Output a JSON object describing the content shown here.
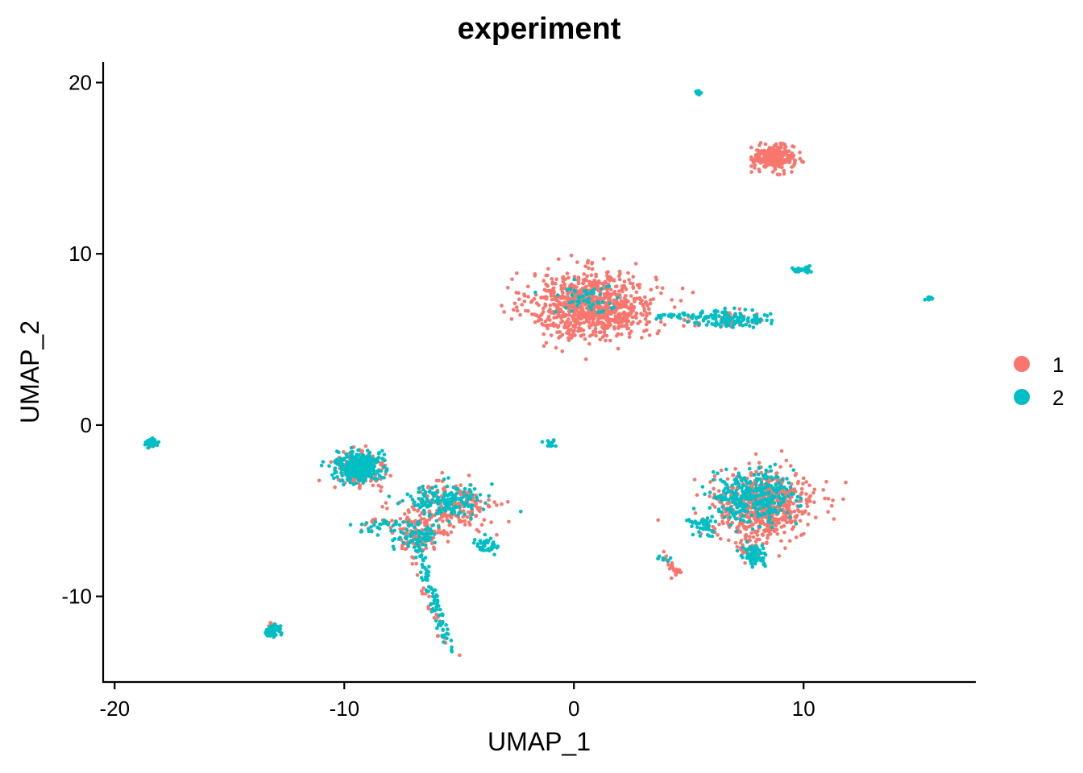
{
  "chart_data": {
    "type": "scatter",
    "title": "experiment",
    "xlabel": "UMAP_1",
    "ylabel": "UMAP_2",
    "xlim": [
      -20.5,
      17.5
    ],
    "ylim": [
      -15.0,
      21.2
    ],
    "xticks": [
      {
        "value": -20,
        "label": "-20"
      },
      {
        "value": -10,
        "label": "-10"
      },
      {
        "value": 0,
        "label": "0"
      },
      {
        "value": 10,
        "label": "10"
      }
    ],
    "yticks": [
      {
        "value": -10,
        "label": "-10"
      },
      {
        "value": 0,
        "label": "0"
      },
      {
        "value": 10,
        "label": "10"
      },
      {
        "value": 20,
        "label": "20"
      }
    ],
    "grid": false,
    "legend": {
      "placement": "right",
      "entries": [
        {
          "label": "1",
          "color": "#F8766D"
        },
        {
          "label": "2",
          "color": "#00BFC4"
        }
      ]
    },
    "series": [
      {
        "name": "1",
        "color": "#F8766D",
        "clusters": [
          {
            "cx": 0.8,
            "cy": 7.0,
            "sx": 1.7,
            "sy": 1.2,
            "n": 900
          },
          {
            "cx": 8.7,
            "cy": 15.6,
            "sx": 0.55,
            "sy": 0.45,
            "n": 260
          },
          {
            "cx": 8.3,
            "cy": -4.7,
            "sx": 1.4,
            "sy": 1.2,
            "n": 600
          },
          {
            "cx": -9.3,
            "cy": -2.6,
            "sx": 0.7,
            "sy": 0.8,
            "n": 160
          },
          {
            "cx": -5.6,
            "cy": -4.8,
            "sx": 1.3,
            "sy": 0.9,
            "n": 190
          },
          {
            "cx": -6.8,
            "cy": -6.5,
            "sx": 0.7,
            "sy": 0.6,
            "n": 80
          },
          {
            "cx": 6.8,
            "cy": 6.1,
            "sx": 1.0,
            "sy": 0.3,
            "n": 45
          },
          {
            "cx": -18.4,
            "cy": -1.0,
            "sx": 0.15,
            "sy": 0.15,
            "n": 12
          },
          {
            "cx": -13.1,
            "cy": -11.8,
            "sx": 0.15,
            "sy": 0.15,
            "n": 12
          },
          {
            "cx": 4.4,
            "cy": -8.5,
            "sx": 0.2,
            "sy": 0.3,
            "n": 15
          },
          {
            "cx": 7.7,
            "cy": -7.0,
            "sx": 0.35,
            "sy": 0.6,
            "n": 30
          }
        ],
        "paths": [
          {
            "x1": -7.6,
            "y1": -6.3,
            "x2": -5.3,
            "y2": -13.4,
            "n": 30,
            "jitter": 0.12
          },
          {
            "x1": -9.6,
            "y1": -6.0,
            "x2": -3.0,
            "y2": -4.7,
            "n": 40,
            "jitter": 0.25
          },
          {
            "x1": 3.7,
            "y1": -7.6,
            "x2": 4.6,
            "y2": -8.8,
            "n": 10,
            "jitter": 0.1
          }
        ]
      },
      {
        "name": "2",
        "color": "#00BFC4",
        "clusters": [
          {
            "cx": -9.4,
            "cy": -2.4,
            "sx": 0.6,
            "sy": 0.55,
            "n": 320
          },
          {
            "cx": -5.6,
            "cy": -4.4,
            "sx": 1.1,
            "sy": 0.6,
            "n": 160
          },
          {
            "cx": -3.8,
            "cy": -7.0,
            "sx": 0.3,
            "sy": 0.3,
            "n": 40
          },
          {
            "cx": -6.9,
            "cy": -6.5,
            "sx": 0.6,
            "sy": 0.5,
            "n": 70
          },
          {
            "cx": -8.4,
            "cy": -5.9,
            "sx": 0.6,
            "sy": 0.3,
            "n": 30
          },
          {
            "cx": 7.8,
            "cy": -4.2,
            "sx": 1.1,
            "sy": 0.9,
            "n": 330
          },
          {
            "cx": 7.9,
            "cy": -7.6,
            "sx": 0.35,
            "sy": 0.4,
            "n": 70
          },
          {
            "cx": 5.6,
            "cy": -5.8,
            "sx": 0.4,
            "sy": 0.35,
            "n": 45
          },
          {
            "cx": 6.8,
            "cy": 6.2,
            "sx": 1.0,
            "sy": 0.3,
            "n": 120
          },
          {
            "cx": 0.6,
            "cy": 7.4,
            "sx": 1.0,
            "sy": 0.5,
            "n": 60
          },
          {
            "cx": -18.4,
            "cy": -1.0,
            "sx": 0.15,
            "sy": 0.15,
            "n": 45
          },
          {
            "cx": -13.1,
            "cy": -12.0,
            "sx": 0.18,
            "sy": 0.2,
            "n": 60
          },
          {
            "cx": 5.4,
            "cy": 19.4,
            "sx": 0.08,
            "sy": 0.08,
            "n": 14
          },
          {
            "cx": 15.5,
            "cy": 7.4,
            "sx": 0.1,
            "sy": 0.08,
            "n": 14
          },
          {
            "cx": 9.9,
            "cy": 9.0,
            "sx": 0.3,
            "sy": 0.1,
            "n": 20
          },
          {
            "cx": -1.0,
            "cy": -1.1,
            "sx": 0.22,
            "sy": 0.15,
            "n": 12
          }
        ],
        "paths": [
          {
            "x1": -6.8,
            "y1": -7.0,
            "x2": -5.4,
            "y2": -13.3,
            "n": 90,
            "jitter": 0.12
          },
          {
            "x1": 3.6,
            "y1": 6.4,
            "x2": 6.2,
            "y2": 6.3,
            "n": 35,
            "jitter": 0.08
          },
          {
            "x1": 3.5,
            "y1": -7.6,
            "x2": 4.2,
            "y2": -7.9,
            "n": 8,
            "jitter": 0.08
          },
          {
            "x1": 9.6,
            "y1": 8.8,
            "x2": 10.3,
            "y2": 9.3,
            "n": 10,
            "jitter": 0.05
          }
        ]
      }
    ]
  }
}
